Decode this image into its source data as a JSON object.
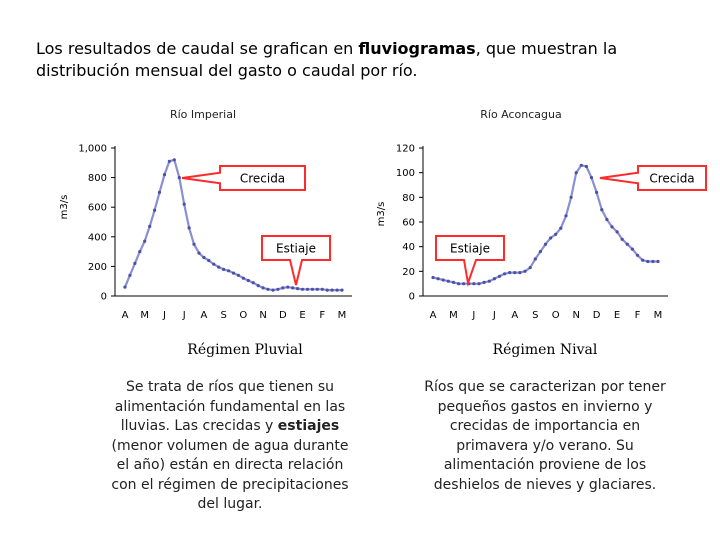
{
  "intro": {
    "before": "Los resultados de caudal se grafican en ",
    "bold": "fluviogramas",
    "after": ", que muestran la distribución mensual del gasto o caudal por río."
  },
  "chart_data": [
    {
      "type": "line",
      "title": "Río Imperial",
      "ylabel": "m3/s",
      "xlabel": "",
      "ylim": [
        0,
        1000
      ],
      "yticks": [
        "0",
        "200",
        "400",
        "600",
        "800",
        "1,000"
      ],
      "categories": [
        "A",
        "M",
        "J",
        "J",
        "A",
        "S",
        "O",
        "N",
        "D",
        "E",
        "F",
        "M"
      ],
      "series": [
        {
          "color": "#8a8fd0",
          "x": [
            0,
            0.25,
            0.5,
            0.75,
            1,
            1.25,
            1.5,
            1.75,
            2,
            2.25,
            2.5,
            2.75,
            3,
            3.25,
            3.5,
            3.75,
            4,
            4.25,
            4.5,
            4.75,
            5,
            5.25,
            5.5,
            5.75,
            6,
            6.25,
            6.5,
            6.75,
            7,
            7.25,
            7.5,
            7.75,
            8,
            8.25,
            8.5,
            8.75,
            9,
            9.25,
            9.5,
            9.75,
            10,
            10.25,
            10.5,
            10.75,
            11
          ],
          "values": [
            60,
            140,
            220,
            300,
            370,
            470,
            580,
            700,
            820,
            910,
            920,
            800,
            620,
            460,
            350,
            290,
            260,
            240,
            215,
            195,
            180,
            170,
            155,
            140,
            120,
            105,
            90,
            70,
            55,
            45,
            40,
            45,
            55,
            60,
            55,
            50,
            45,
            45,
            45,
            45,
            45,
            40,
            40,
            40,
            40
          ]
        }
      ],
      "annotations": [
        {
          "label": "Crecida",
          "x": 2.6,
          "y": 920
        },
        {
          "label": "Estiaje",
          "x": 7.6,
          "y": 40
        }
      ]
    },
    {
      "type": "line",
      "title": "Río Aconcagua",
      "ylabel": "m3/s",
      "xlabel": "",
      "ylim": [
        0,
        120
      ],
      "yticks": [
        "0",
        "20",
        "40",
        "60",
        "80",
        "100",
        "120"
      ],
      "categories": [
        "A",
        "M",
        "J",
        "J",
        "A",
        "S",
        "O",
        "N",
        "D",
        "E",
        "F",
        "M"
      ],
      "series": [
        {
          "color": "#8a8fd0",
          "x": [
            0,
            0.25,
            0.5,
            0.75,
            1,
            1.25,
            1.5,
            1.75,
            2,
            2.25,
            2.5,
            2.75,
            3,
            3.25,
            3.5,
            3.75,
            4,
            4.25,
            4.5,
            4.75,
            5,
            5.25,
            5.5,
            5.75,
            6,
            6.25,
            6.5,
            6.75,
            7,
            7.25,
            7.5,
            7.75,
            8,
            8.25,
            8.5,
            8.75,
            9,
            9.25,
            9.5,
            9.75,
            10,
            10.25,
            10.5,
            10.75,
            11
          ],
          "values": [
            15,
            14,
            13,
            12,
            11,
            10,
            10,
            10,
            10,
            10,
            11,
            12,
            14,
            16,
            18,
            19,
            19,
            19,
            20,
            23,
            30,
            36,
            42,
            47,
            50,
            55,
            65,
            80,
            100,
            106,
            105,
            96,
            84,
            70,
            62,
            56,
            52,
            46,
            42,
            38,
            33,
            29,
            28,
            28,
            28
          ]
        }
      ],
      "annotations": [
        {
          "label": "Crecida",
          "x": 8.5,
          "y": 108
        },
        {
          "label": "Estiaje",
          "x": 1.5,
          "y": 10
        }
      ]
    }
  ],
  "regimes": [
    {
      "name": "Régimen Pluvial",
      "description": {
        "before": "Se trata de ríos que tienen su alimentación fundamental en las lluvias. Las crecidas y ",
        "bold": "estiajes",
        "after": " (menor volumen de agua durante el año) están en directa relación con el régimen de precipitaciones del lugar."
      }
    },
    {
      "name": "Régimen Nival",
      "description": {
        "text": "Ríos que se caracterizan por tener pequeños gastos en invierno y crecidas de importancia en primavera y/o verano. Su alimentación proviene de los deshielos de nieves y glaciares."
      }
    }
  ]
}
